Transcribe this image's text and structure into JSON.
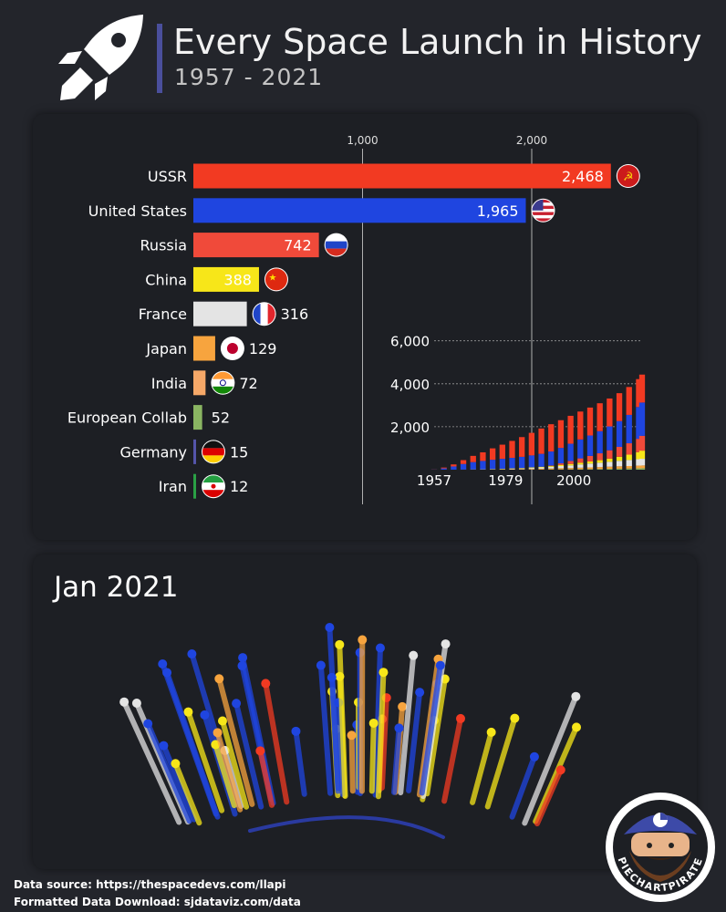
{
  "header": {
    "title": "Every Space Launch in History",
    "subtitle": "1957 - 2021",
    "icon": "rocket-icon"
  },
  "chart_data": [
    {
      "type": "bar",
      "orientation": "horizontal",
      "categories": [
        "USSR",
        "United States",
        "Russia",
        "China",
        "France",
        "Japan",
        "India",
        "European Collab",
        "Germany",
        "Iran"
      ],
      "values": [
        2468,
        1965,
        742,
        388,
        316,
        129,
        72,
        52,
        15,
        12
      ],
      "value_labels": [
        "2,468",
        "1,965",
        "742",
        "388",
        "316",
        "129",
        "72",
        "52",
        "15",
        "12"
      ],
      "colors": [
        "#f23a22",
        "#1f45e0",
        "#f04a3a",
        "#f7e619",
        "#e4e4e4",
        "#f7a43e",
        "#f6a868",
        "#8ab562",
        "#5555aa",
        "#2aa045"
      ],
      "x_ticks": [
        1000,
        2000
      ],
      "x_tick_labels": [
        "1,000",
        "2,000"
      ],
      "xlim": [
        0,
        2600
      ]
    },
    {
      "type": "bar",
      "stacked": true,
      "x_tick_labels": [
        "1957",
        "1979",
        "2000"
      ],
      "y_ticks": [
        2000,
        4000,
        6000
      ],
      "y_tick_labels": [
        "2,000",
        "4,000",
        "6,000"
      ],
      "ylim": [
        0,
        6200
      ],
      "grid": true,
      "xlim": [
        1957,
        2021
      ],
      "bins": [
        {
          "year": 1957,
          "v": [
            5,
            6,
            0,
            0,
            0,
            0,
            0
          ]
        },
        {
          "year": 1960,
          "v": [
            40,
            60,
            0,
            0,
            0,
            0,
            0
          ]
        },
        {
          "year": 1963,
          "v": [
            95,
            150,
            0,
            0,
            0,
            0,
            0
          ]
        },
        {
          "year": 1966,
          "v": [
            180,
            260,
            0,
            0,
            5,
            0,
            0
          ]
        },
        {
          "year": 1969,
          "v": [
            290,
            340,
            0,
            0,
            10,
            3,
            0
          ]
        },
        {
          "year": 1972,
          "v": [
            400,
            390,
            0,
            0,
            12,
            6,
            0
          ]
        },
        {
          "year": 1975,
          "v": [
            530,
            430,
            0,
            8,
            15,
            10,
            0
          ]
        },
        {
          "year": 1978,
          "v": [
            660,
            460,
            0,
            12,
            18,
            15,
            0
          ]
        },
        {
          "year": 1981,
          "v": [
            790,
            490,
            0,
            16,
            22,
            20,
            2
          ]
        },
        {
          "year": 1984,
          "v": [
            920,
            520,
            0,
            20,
            30,
            25,
            3
          ]
        },
        {
          "year": 1987,
          "v": [
            1050,
            560,
            0,
            25,
            45,
            30,
            5
          ]
        },
        {
          "year": 1990,
          "v": [
            1180,
            600,
            0,
            32,
            60,
            38,
            7
          ]
        },
        {
          "year": 1993,
          "v": [
            1270,
            650,
            20,
            42,
            80,
            45,
            10
          ]
        },
        {
          "year": 1996,
          "v": [
            1290,
            720,
            70,
            55,
            100,
            55,
            14
          ]
        },
        {
          "year": 1999,
          "v": [
            1300,
            800,
            140,
            70,
            120,
            60,
            18
          ]
        },
        {
          "year": 2002,
          "v": [
            1300,
            880,
            200,
            85,
            150,
            70,
            22
          ]
        },
        {
          "year": 2005,
          "v": [
            1300,
            950,
            260,
            100,
            175,
            80,
            27
          ]
        },
        {
          "year": 2008,
          "v": [
            1300,
            1030,
            320,
            120,
            200,
            90,
            33
          ]
        },
        {
          "year": 2011,
          "v": [
            1300,
            1110,
            390,
            150,
            225,
            100,
            40
          ]
        },
        {
          "year": 2014,
          "v": [
            1300,
            1200,
            460,
            190,
            255,
            110,
            47
          ]
        },
        {
          "year": 2017,
          "v": [
            1300,
            1320,
            530,
            250,
            280,
            115,
            55
          ]
        },
        {
          "year": 2020,
          "v": [
            1300,
            1480,
            620,
            330,
            300,
            122,
            65
          ]
        },
        {
          "year": 2021,
          "v": [
            1300,
            1550,
            690,
            380,
            310,
            127,
            70
          ]
        }
      ]
    }
  ],
  "dots_panel": {
    "date_label": "Jan 2021"
  },
  "footer": {
    "source": "Data source: https://thespacedevs.com/llapi",
    "download": "Formatted Data Download: sjdataviz.com/data"
  },
  "logo": {
    "text": "PIECHARTPIRATE"
  }
}
